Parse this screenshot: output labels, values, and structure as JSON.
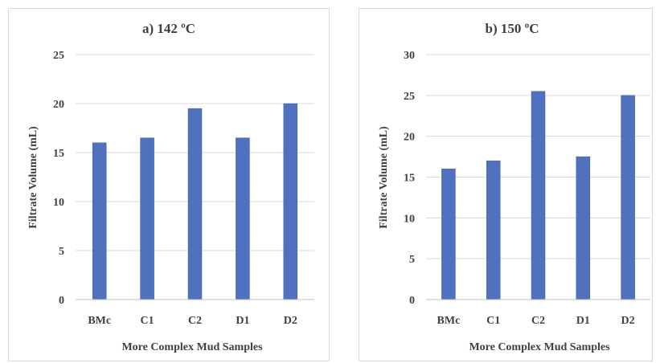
{
  "colors": {
    "bar": "#4f71be",
    "bar_edge": "#3f5fa8",
    "grid": "#d9d9d9",
    "axis": "#bfbfbf"
  },
  "chart_data": [
    {
      "type": "bar",
      "title": "a) 142 ºC",
      "xlabel": "More Complex Mud Samples",
      "ylabel": "Filtrate Volume (mL)",
      "categories": [
        "BMc",
        "C1",
        "C2",
        "D1",
        "D2"
      ],
      "values": [
        16,
        16.5,
        19.5,
        16.5,
        20
      ],
      "ylim": [
        0,
        25
      ],
      "yticks": [
        "0",
        "5",
        "10",
        "15",
        "20",
        "25"
      ],
      "grid": true
    },
    {
      "type": "bar",
      "title": "b) 150 ºC",
      "xlabel": "More Complex Mud Samples",
      "ylabel": "Filtrate Volume (mL)",
      "categories": [
        "BMc",
        "C1",
        "C2",
        "D1",
        "D2"
      ],
      "values": [
        16,
        17,
        25.5,
        17.5,
        25
      ],
      "ylim": [
        0,
        30
      ],
      "yticks": [
        "0",
        "5",
        "10",
        "15",
        "20",
        "25",
        "30"
      ],
      "grid": true
    }
  ]
}
